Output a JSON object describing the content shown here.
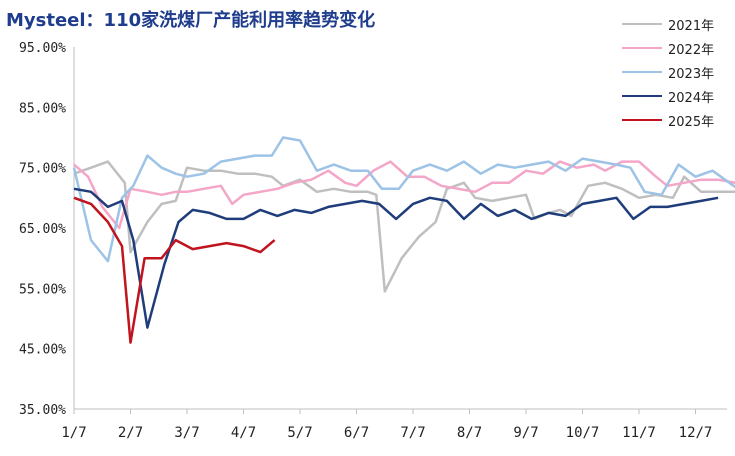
{
  "chart_data": {
    "type": "line",
    "title": "Mysteel：110家洗煤厂产能利用率趋势变化",
    "xlabel": "",
    "ylabel": "",
    "ylim": [
      35,
      95
    ],
    "y_ticks": [
      "35.00%",
      "45.00%",
      "55.00%",
      "65.00%",
      "75.00%",
      "85.00%",
      "95.00%"
    ],
    "x_ticks": [
      "1/7",
      "2/7",
      "3/7",
      "4/7",
      "5/7",
      "6/7",
      "7/7",
      "8/7",
      "9/7",
      "10/7",
      "11/7",
      "12/7"
    ],
    "grid": false,
    "legend_position": "top-right",
    "series": [
      {
        "name": "2021年",
        "color": "#bfbfbf",
        "points": [
          [
            1,
            74
          ],
          [
            1.3,
            75
          ],
          [
            1.6,
            76
          ],
          [
            1.9,
            72.5
          ],
          [
            2.0,
            61
          ],
          [
            2.3,
            66
          ],
          [
            2.55,
            69
          ],
          [
            2.8,
            69.5
          ],
          [
            3.0,
            75
          ],
          [
            3.3,
            74.5
          ],
          [
            3.6,
            74.5
          ],
          [
            3.9,
            74
          ],
          [
            4.2,
            74
          ],
          [
            4.5,
            73.5
          ],
          [
            4.7,
            72
          ],
          [
            5.0,
            73
          ],
          [
            5.3,
            71
          ],
          [
            5.6,
            71.5
          ],
          [
            5.9,
            71
          ],
          [
            6.2,
            71
          ],
          [
            6.35,
            70.5
          ],
          [
            6.5,
            54.5
          ],
          [
            6.8,
            60
          ],
          [
            7.1,
            63.5
          ],
          [
            7.4,
            66
          ],
          [
            7.6,
            71.5
          ],
          [
            7.9,
            72.5
          ],
          [
            8.1,
            70
          ],
          [
            8.4,
            69.5
          ],
          [
            8.7,
            70
          ],
          [
            9.0,
            70.5
          ],
          [
            9.15,
            66.5
          ],
          [
            9.4,
            67.5
          ],
          [
            9.6,
            68
          ],
          [
            9.8,
            67
          ],
          [
            10.1,
            72
          ],
          [
            10.4,
            72.5
          ],
          [
            10.7,
            71.5
          ],
          [
            11.0,
            70
          ],
          [
            11.3,
            70.5
          ],
          [
            11.6,
            70
          ],
          [
            11.8,
            73.5
          ],
          [
            12.1,
            71
          ],
          [
            12.4,
            71
          ],
          [
            12.7,
            71
          ]
        ]
      },
      {
        "name": "2022年",
        "color": "#f4a6c8",
        "points": [
          [
            1,
            75.5
          ],
          [
            1.25,
            73.5
          ],
          [
            1.5,
            68.5
          ],
          [
            1.8,
            65
          ],
          [
            2.0,
            71.5
          ],
          [
            2.3,
            71
          ],
          [
            2.55,
            70.5
          ],
          [
            2.8,
            71
          ],
          [
            3.0,
            71
          ],
          [
            3.3,
            71.5
          ],
          [
            3.6,
            72
          ],
          [
            3.8,
            69
          ],
          [
            4.0,
            70.5
          ],
          [
            4.3,
            71
          ],
          [
            4.6,
            71.5
          ],
          [
            4.9,
            72.5
          ],
          [
            5.2,
            73
          ],
          [
            5.5,
            74.5
          ],
          [
            5.8,
            72.5
          ],
          [
            6.0,
            72
          ],
          [
            6.3,
            74.5
          ],
          [
            6.6,
            76
          ],
          [
            6.9,
            73.5
          ],
          [
            7.2,
            73.5
          ],
          [
            7.5,
            72
          ],
          [
            7.8,
            71.5
          ],
          [
            8.1,
            71
          ],
          [
            8.4,
            72.5
          ],
          [
            8.7,
            72.5
          ],
          [
            9.0,
            74.5
          ],
          [
            9.3,
            74
          ],
          [
            9.6,
            76
          ],
          [
            9.9,
            75
          ],
          [
            10.2,
            75.5
          ],
          [
            10.4,
            74.5
          ],
          [
            10.7,
            76
          ],
          [
            11.0,
            76
          ],
          [
            11.3,
            73.5
          ],
          [
            11.5,
            72
          ],
          [
            11.8,
            72.5
          ],
          [
            12.1,
            73
          ],
          [
            12.4,
            73
          ],
          [
            12.7,
            72.5
          ],
          [
            13.0,
            72.5
          ],
          [
            13.3,
            73
          ],
          [
            13.55,
            72
          ],
          [
            13.8,
            74.5
          ]
        ]
      },
      {
        "name": "2023年",
        "color": "#9dc3e6",
        "points": [
          [
            1,
            75
          ],
          [
            1.3,
            63
          ],
          [
            1.6,
            59.5
          ],
          [
            1.85,
            70
          ],
          [
            2.05,
            72
          ],
          [
            2.3,
            77
          ],
          [
            2.55,
            75
          ],
          [
            2.8,
            74
          ],
          [
            3.0,
            73.5
          ],
          [
            3.3,
            74
          ],
          [
            3.6,
            76
          ],
          [
            3.9,
            76.5
          ],
          [
            4.2,
            77
          ],
          [
            4.5,
            77
          ],
          [
            4.7,
            80
          ],
          [
            5.0,
            79.5
          ],
          [
            5.3,
            74.5
          ],
          [
            5.6,
            75.5
          ],
          [
            5.9,
            74.5
          ],
          [
            6.2,
            74.5
          ],
          [
            6.45,
            71.5
          ],
          [
            6.75,
            71.5
          ],
          [
            7.0,
            74.5
          ],
          [
            7.3,
            75.5
          ],
          [
            7.6,
            74.5
          ],
          [
            7.9,
            76
          ],
          [
            8.2,
            74
          ],
          [
            8.5,
            75.5
          ],
          [
            8.8,
            75
          ],
          [
            9.1,
            75.5
          ],
          [
            9.4,
            76
          ],
          [
            9.7,
            74.5
          ],
          [
            10.0,
            76.5
          ],
          [
            10.3,
            76
          ],
          [
            10.6,
            75.5
          ],
          [
            10.85,
            75
          ],
          [
            11.1,
            71
          ],
          [
            11.4,
            70.5
          ],
          [
            11.7,
            75.5
          ],
          [
            12.0,
            73.5
          ],
          [
            12.3,
            74.5
          ],
          [
            12.6,
            72.5
          ],
          [
            12.9,
            70.5
          ],
          [
            13.15,
            73.5
          ],
          [
            13.5,
            73
          ],
          [
            13.8,
            70.5
          ],
          [
            14.1,
            71
          ],
          [
            14.35,
            70.5
          ],
          [
            14.6,
            67
          ]
        ]
      },
      {
        "name": "2024年",
        "color": "#1f3d7a",
        "points": [
          [
            1,
            71.5
          ],
          [
            1.3,
            71
          ],
          [
            1.6,
            68.5
          ],
          [
            1.85,
            69.5
          ],
          [
            2.05,
            63
          ],
          [
            2.3,
            48.5
          ],
          [
            2.6,
            59
          ],
          [
            2.85,
            66
          ],
          [
            3.1,
            68
          ],
          [
            3.4,
            67.5
          ],
          [
            3.7,
            66.5
          ],
          [
            4.0,
            66.5
          ],
          [
            4.3,
            68
          ],
          [
            4.6,
            67
          ],
          [
            4.9,
            68
          ],
          [
            5.2,
            67.5
          ],
          [
            5.5,
            68.5
          ],
          [
            5.8,
            69
          ],
          [
            6.1,
            69.5
          ],
          [
            6.4,
            69
          ],
          [
            6.7,
            66.5
          ],
          [
            7.0,
            69
          ],
          [
            7.3,
            70
          ],
          [
            7.6,
            69.5
          ],
          [
            7.9,
            66.5
          ],
          [
            8.2,
            69
          ],
          [
            8.5,
            67
          ],
          [
            8.8,
            68
          ],
          [
            9.1,
            66.5
          ],
          [
            9.4,
            67.5
          ],
          [
            9.7,
            67
          ],
          [
            10.0,
            69
          ],
          [
            10.3,
            69.5
          ],
          [
            10.6,
            70
          ],
          [
            10.9,
            66.5
          ],
          [
            11.2,
            68.5
          ],
          [
            11.5,
            68.5
          ],
          [
            11.8,
            69
          ],
          [
            12.1,
            69.5
          ],
          [
            12.4,
            70
          ]
        ]
      },
      {
        "name": "2025年",
        "color": "#c0141e",
        "points": [
          [
            1,
            70
          ],
          [
            1.3,
            69
          ],
          [
            1.6,
            66
          ],
          [
            1.85,
            62
          ],
          [
            2.0,
            46
          ],
          [
            2.25,
            60
          ],
          [
            2.55,
            60
          ],
          [
            2.8,
            63
          ],
          [
            3.1,
            61.5
          ],
          [
            3.4,
            62
          ],
          [
            3.7,
            62.5
          ],
          [
            4.0,
            62
          ],
          [
            4.3,
            61
          ],
          [
            4.55,
            63
          ]
        ]
      }
    ],
    "x_domain": [
      1,
      14.6
    ]
  }
}
